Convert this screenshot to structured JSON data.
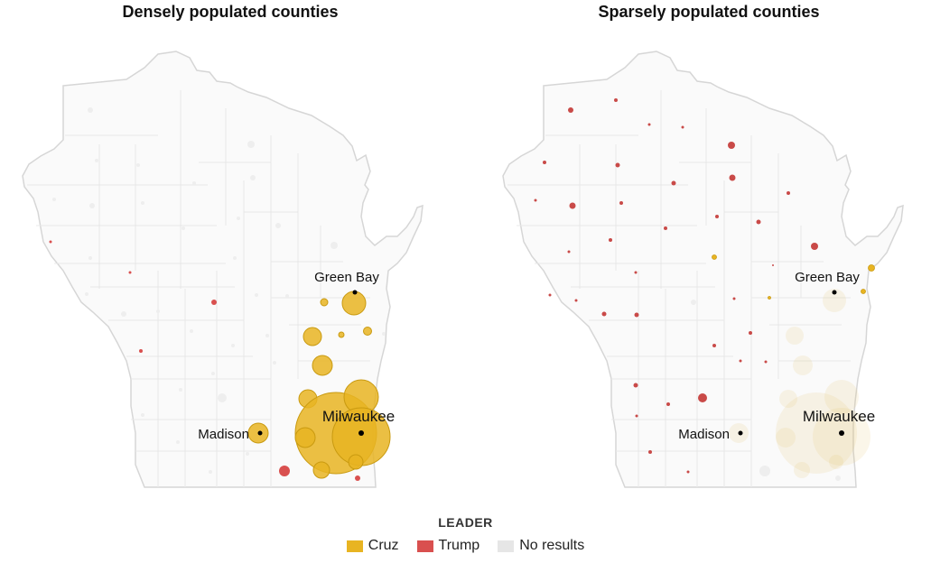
{
  "titles": {
    "left": "Densely populated counties",
    "right": "Sparsely populated counties"
  },
  "cities": {
    "green_bay": "Green Bay",
    "madison": "Madison",
    "milwaukee": "Milwaukee"
  },
  "legend": {
    "title": "LEADER",
    "items": [
      {
        "label": "Cruz",
        "color": "#e8b422"
      },
      {
        "label": "Trump",
        "color": "#d9504f"
      },
      {
        "label": "No results",
        "color": "#e6e6e6"
      }
    ]
  },
  "colors": {
    "cruz": "#e8b422",
    "trump": "#d9504f",
    "no_results": "#e6e6e6",
    "outline": "#dcdcdc"
  }
}
